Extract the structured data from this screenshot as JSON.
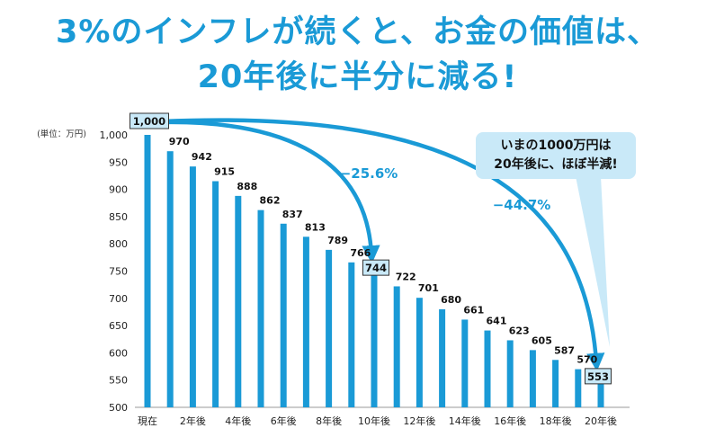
{
  "title": {
    "line1": "3%のインフレが続くと、お金の価値は、",
    "line2": "20年後に半分に減る!"
  },
  "callout": {
    "line1": "いまの1000万円は",
    "line2": "20年後に、ほぼ半減!"
  },
  "colors": {
    "accent": "#1a9ad6",
    "bar": "#1a9ad6",
    "callout_bg": "#c9e9f8",
    "highlight_box": "#c9e9f8"
  },
  "chart_data": {
    "type": "bar",
    "unit_label": "(単位：万円)",
    "ylim": [
      500,
      1000
    ],
    "yticks": [
      500,
      550,
      600,
      650,
      700,
      750,
      800,
      850,
      900,
      950,
      1000
    ],
    "categories": [
      "現在",
      "",
      "2年後",
      "",
      "4年後",
      "",
      "6年後",
      "",
      "8年後",
      "",
      "10年後",
      "",
      "12年後",
      "",
      "14年後",
      "",
      "16年後",
      "",
      "18年後",
      "",
      "20年後"
    ],
    "values": [
      1000,
      970,
      942,
      915,
      888,
      862,
      837,
      813,
      789,
      766,
      744,
      722,
      701,
      680,
      661,
      641,
      623,
      605,
      587,
      570,
      553
    ],
    "value_labels": [
      "1,000",
      "970",
      "942",
      "915",
      "888",
      "862",
      "837",
      "813",
      "789",
      "766",
      "744",
      "722",
      "701",
      "680",
      "661",
      "641",
      "623",
      "605",
      "587",
      "570",
      "553"
    ],
    "highlighted_indices": [
      0,
      10,
      20
    ],
    "annotations": [
      {
        "text": "−25.6%",
        "from_index": 0,
        "to_index": 10
      },
      {
        "text": "−44.7%",
        "from_index": 0,
        "to_index": 20
      }
    ]
  }
}
